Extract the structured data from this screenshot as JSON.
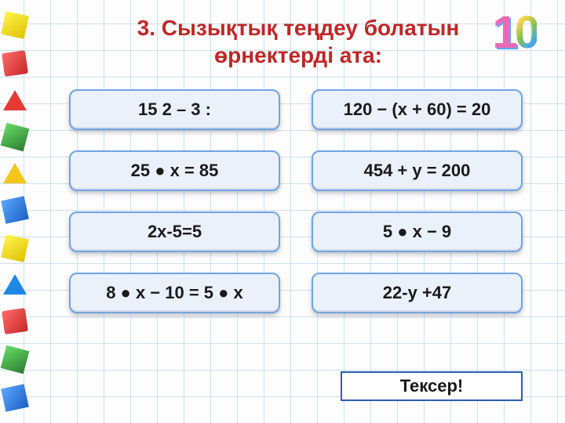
{
  "title_color": "#c02626",
  "title_line1": "3. Сызықтық теңдеу болатын",
  "title_line2": "өрнектерді ата:",
  "badge": {
    "d1": "1",
    "d0": "0"
  },
  "option_style": {
    "bg": "#eaf1fb",
    "border": "#6fa5e6",
    "text": "#1a1a1a"
  },
  "options": [
    {
      "label": "15 2 – 3 :"
    },
    {
      "label": "120 − (х + 60) = 20"
    },
    {
      "label": "25 ● х = 85"
    },
    {
      "label": "454 + у = 200"
    },
    {
      "label": "2х-5=5"
    },
    {
      "label": "5 ● х − 9"
    },
    {
      "label": "8 ● х − 10 = 5 ● х"
    },
    {
      "label": "22-у +47"
    }
  ],
  "check": {
    "label": "Тексер!",
    "border": "#2a5fb0",
    "text": "#1a1a1a"
  }
}
